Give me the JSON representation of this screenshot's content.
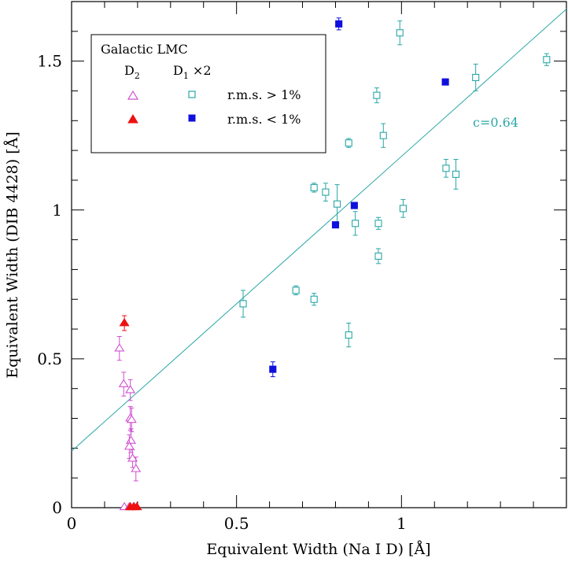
{
  "chart_data": {
    "type": "scatter",
    "xlabel": "Equivalent Width (Na I D) [Å]",
    "ylabel": "Equivalent Width (DIB 4428) [Å]",
    "xlim": [
      0,
      1.5
    ],
    "ylim": [
      0,
      1.7
    ],
    "xticks": [
      {
        "value": 0,
        "label": "0"
      },
      {
        "value": 0.5,
        "label": "0.5"
      },
      {
        "value": 1,
        "label": "1"
      }
    ],
    "yticks": [
      {
        "value": 0,
        "label": "0"
      },
      {
        "value": 0.5,
        "label": "0.5"
      },
      {
        "value": 1,
        "label": "1"
      },
      {
        "value": 1.5,
        "label": "1.5"
      }
    ],
    "legend": {
      "header": "Galactic  LMC",
      "col_galactic": "D",
      "col_galactic_sub": "2",
      "col_lmc": "D",
      "col_lmc_sub": "1",
      "col_lmc_suffix": " ×2",
      "row_high": "r.m.s. > 1%",
      "row_low": "r.m.s. < 1%",
      "position": "top-left"
    },
    "fit": {
      "label": "c=0.64",
      "intercept": 0.19,
      "slope": 0.99,
      "color": "#2aa6a6"
    },
    "colors": {
      "galactic_open": "#d050d0",
      "galactic_filled": "#ee1111",
      "lmc_open": "#2aa6a6",
      "lmc_filled": "#1010dd"
    },
    "series": [
      {
        "name": "Galactic D2 (r.m.s. > 1%)",
        "marker": "triangle-open",
        "points": [
          {
            "x": 0.145,
            "y": 0.535,
            "err": 0.04
          },
          {
            "x": 0.158,
            "y": 0.415,
            "err": 0.04
          },
          {
            "x": 0.178,
            "y": 0.395,
            "err": 0.035
          },
          {
            "x": 0.178,
            "y": 0.3,
            "err": 0.04
          },
          {
            "x": 0.182,
            "y": 0.295,
            "err": 0.04
          },
          {
            "x": 0.18,
            "y": 0.225,
            "err": 0.04
          },
          {
            "x": 0.175,
            "y": 0.205,
            "err": 0.04
          },
          {
            "x": 0.185,
            "y": 0.165,
            "err": 0.03
          },
          {
            "x": 0.195,
            "y": 0.13,
            "err": 0.04
          },
          {
            "x": 0.16,
            "y": 0.002,
            "err": 0
          },
          {
            "x": 0.175,
            "y": 0.002,
            "err": 0
          },
          {
            "x": 0.19,
            "y": 0.002,
            "err": 0
          }
        ]
      },
      {
        "name": "Galactic D2 (r.m.s. < 1%)",
        "marker": "triangle-filled",
        "points": [
          {
            "x": 0.16,
            "y": 0.62,
            "err": 0.025
          },
          {
            "x": 0.178,
            "y": 0.002,
            "err": 0
          },
          {
            "x": 0.188,
            "y": 0.002,
            "err": 0
          },
          {
            "x": 0.198,
            "y": 0.002,
            "err": 0
          }
        ]
      },
      {
        "name": "LMC D1 x2 (r.m.s. > 1%)",
        "marker": "square-open",
        "points": [
          {
            "x": 0.52,
            "y": 0.685,
            "err": 0.045
          },
          {
            "x": 0.68,
            "y": 0.73,
            "err": 0.015
          },
          {
            "x": 0.735,
            "y": 0.7,
            "err": 0.02
          },
          {
            "x": 0.735,
            "y": 1.075,
            "err": 0.015
          },
          {
            "x": 0.77,
            "y": 1.06,
            "err": 0.03
          },
          {
            "x": 0.805,
            "y": 1.02,
            "err": 0.065
          },
          {
            "x": 0.84,
            "y": 0.58,
            "err": 0.04
          },
          {
            "x": 0.84,
            "y": 1.225,
            "err": 0.015
          },
          {
            "x": 0.86,
            "y": 0.955,
            "err": 0.04
          },
          {
            "x": 0.925,
            "y": 1.385,
            "err": 0.025
          },
          {
            "x": 0.93,
            "y": 0.845,
            "err": 0.025
          },
          {
            "x": 0.93,
            "y": 0.955,
            "err": 0.02
          },
          {
            "x": 0.945,
            "y": 1.25,
            "err": 0.04
          },
          {
            "x": 0.995,
            "y": 1.595,
            "err": 0.04
          },
          {
            "x": 1.005,
            "y": 1.005,
            "err": 0.03
          },
          {
            "x": 1.135,
            "y": 1.14,
            "err": 0.03
          },
          {
            "x": 1.165,
            "y": 1.12,
            "err": 0.05
          },
          {
            "x": 1.225,
            "y": 1.445,
            "err": 0.045
          },
          {
            "x": 1.44,
            "y": 1.505,
            "err": 0.02
          }
        ]
      },
      {
        "name": "LMC D1 x2 (r.m.s. < 1%)",
        "marker": "square-filled",
        "points": [
          {
            "x": 0.61,
            "y": 0.465,
            "err": 0.025
          },
          {
            "x": 0.8,
            "y": 0.95,
            "err": 0.01
          },
          {
            "x": 0.81,
            "y": 1.625,
            "err": 0.02
          },
          {
            "x": 0.857,
            "y": 1.015,
            "err": 0.01
          },
          {
            "x": 1.133,
            "y": 1.43,
            "err": 0.01
          }
        ]
      }
    ]
  }
}
